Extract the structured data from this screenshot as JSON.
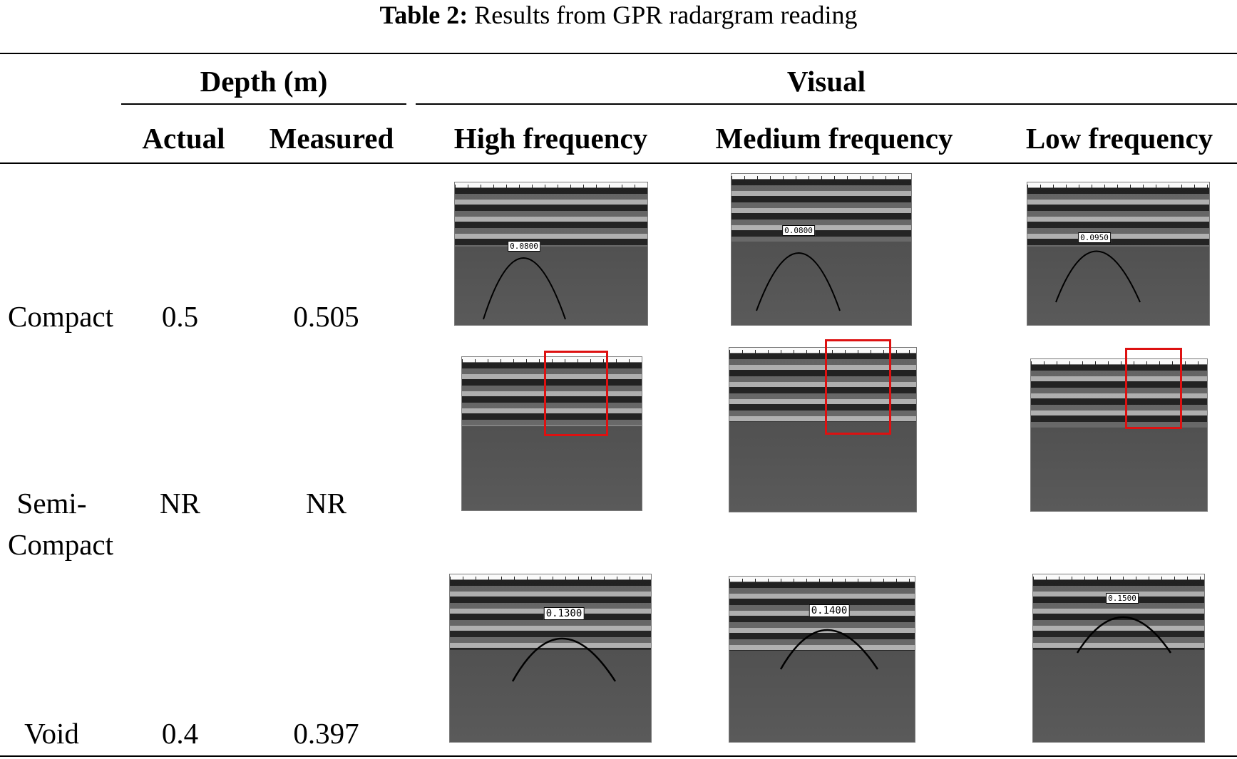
{
  "caption": {
    "label": "Table 2:",
    "text": "Results from GPR radargram reading"
  },
  "headers": {
    "depth_group": "Depth (m)",
    "visual_group": "Visual",
    "actual": "Actual",
    "measured": "Measured",
    "high": "High frequency",
    "medium": "Medium frequency",
    "low": "Low frequency"
  },
  "rows": [
    {
      "label": "Compact",
      "actual": "0.5",
      "measured": "0.505",
      "readings": {
        "high": "0.0800",
        "medium": "0.0800",
        "low": "0.0950"
      }
    },
    {
      "label_line1": "Semi-",
      "label_line2": "Compact",
      "actual": "NR",
      "measured": "NR"
    },
    {
      "label": "Void",
      "actual": "0.4",
      "measured": "0.397",
      "readings": {
        "high": "0.1300",
        "medium": "0.1400",
        "low": "0.1500"
      }
    }
  ]
}
